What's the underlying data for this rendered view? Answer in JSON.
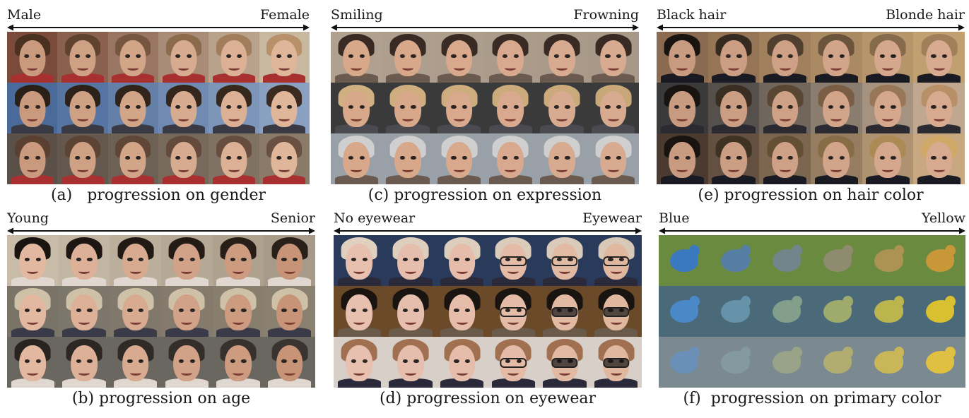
{
  "panels": [
    {
      "id": "a",
      "left_label": "Male",
      "right_label": "Female",
      "caption": "(a)   progression on gender"
    },
    {
      "id": "b",
      "left_label": "Young",
      "right_label": "Senior",
      "caption": "(b) progression on age"
    },
    {
      "id": "c",
      "left_label": "Smiling",
      "right_label": "Frowning",
      "caption": "(c) progression on expression"
    },
    {
      "id": "d",
      "left_label": "No eyewear",
      "right_label": "Eyewear",
      "caption": "(d) progression on eyewear"
    },
    {
      "id": "e",
      "left_label": "Black hair",
      "right_label": "Blonde hair",
      "caption": "(e) progression on hair color"
    },
    {
      "id": "f",
      "left_label": "Blue",
      "right_label": "Yellow",
      "caption": "(f)  progression on primary color"
    }
  ]
}
